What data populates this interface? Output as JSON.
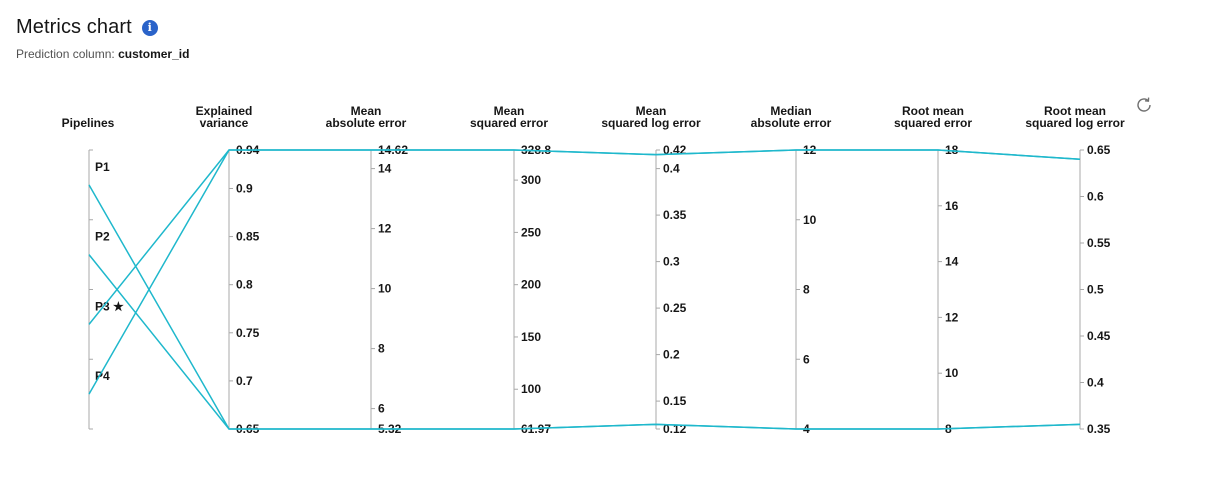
{
  "header": {
    "title": "Metrics chart",
    "info_icon": "info-icon",
    "prediction_label": "Prediction column:",
    "prediction_value": "customer_id"
  },
  "colors": {
    "line": "#1fb8cc",
    "axis": "#a8a8a8",
    "info": "#2a63c9"
  },
  "toolbar": {
    "refresh_icon": "refresh-icon"
  },
  "chart_data": {
    "type": "parallel-coordinates",
    "categorical_axis": {
      "title": [
        "Pipelines"
      ],
      "categories": [
        "P1",
        "P2",
        "P3 ★",
        "P4"
      ]
    },
    "axes": [
      {
        "key": "explained_variance",
        "title": [
          "Explained",
          "variance"
        ],
        "range": [
          0.65,
          0.94
        ],
        "ticks": [
          "0.65",
          "0.7",
          "0.75",
          "0.8",
          "0.85",
          "0.9",
          "0.94"
        ]
      },
      {
        "key": "mae",
        "title": [
          "Mean",
          "absolute error"
        ],
        "range": [
          5.32,
          14.62
        ],
        "ticks": [
          "5.32",
          "6",
          "8",
          "10",
          "12",
          "14",
          "14.62"
        ]
      },
      {
        "key": "mse",
        "title": [
          "Mean",
          "squared error"
        ],
        "range": [
          61.97,
          328.8
        ],
        "ticks": [
          "61.97",
          "100",
          "150",
          "200",
          "250",
          "300",
          "328.8"
        ]
      },
      {
        "key": "msle",
        "title": [
          "Mean",
          "squared log error"
        ],
        "range": [
          0.12,
          0.42
        ],
        "ticks": [
          "0.12",
          "0.15",
          "0.2",
          "0.25",
          "0.3",
          "0.35",
          "0.4",
          "0.42"
        ]
      },
      {
        "key": "medae",
        "title": [
          "Median",
          "absolute error"
        ],
        "range": [
          4,
          12
        ],
        "ticks": [
          "4",
          "6",
          "8",
          "10",
          "12"
        ]
      },
      {
        "key": "rmse",
        "title": [
          "Root mean",
          "squared error"
        ],
        "range": [
          8,
          18
        ],
        "ticks": [
          "8",
          "10",
          "12",
          "14",
          "16",
          "18"
        ]
      },
      {
        "key": "rmsle",
        "title": [
          "Root mean",
          "squared log error"
        ],
        "range": [
          0.35,
          0.65
        ],
        "ticks": [
          "0.35",
          "0.4",
          "0.45",
          "0.5",
          "0.55",
          "0.6",
          "0.65"
        ]
      }
    ],
    "series": [
      {
        "pipeline": "P1",
        "values": [
          0.65,
          5.32,
          61.97,
          0.125,
          4,
          8,
          0.355
        ]
      },
      {
        "pipeline": "P2",
        "values": [
          0.65,
          5.32,
          61.97,
          0.125,
          4,
          8,
          0.355
        ]
      },
      {
        "pipeline": "P3 ★",
        "values": [
          0.94,
          14.62,
          328.8,
          0.415,
          12,
          18,
          0.64
        ]
      },
      {
        "pipeline": "P4",
        "values": [
          0.94,
          14.62,
          328.8,
          0.415,
          12,
          18,
          0.64
        ]
      }
    ]
  }
}
